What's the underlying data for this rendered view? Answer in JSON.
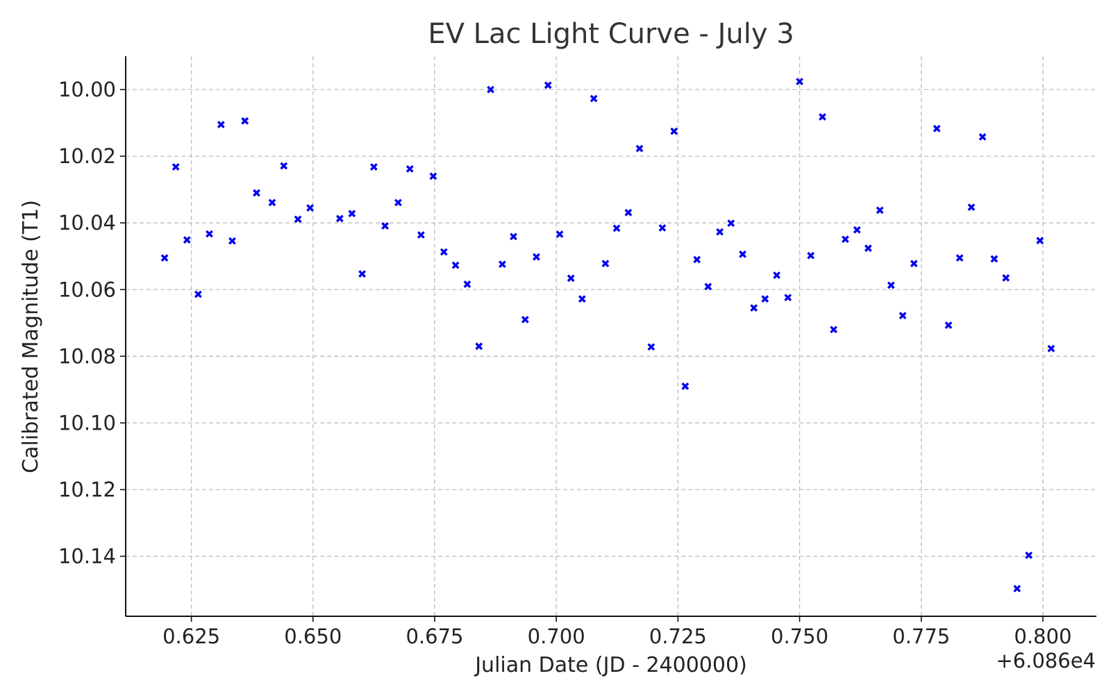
{
  "chart_data": {
    "type": "scatter",
    "title": "EV Lac Light Curve - July 3",
    "xlabel": "Julian Date (JD - 2400000)",
    "ylabel": "Calibrated Magnitude (T1)",
    "x_offset_label": "+6.086e4",
    "x_ticks": [
      "0.625",
      "0.650",
      "0.675",
      "0.700",
      "0.725",
      "0.750",
      "0.775",
      "0.800"
    ],
    "y_ticks": [
      "10.00",
      "10.02",
      "10.04",
      "10.06",
      "10.08",
      "10.10",
      "10.12",
      "10.14"
    ],
    "xlim": [
      60860.6115,
      60860.811
    ],
    "ylim": [
      10.158,
      9.99
    ],
    "y_inverted": true,
    "grid": true,
    "marker": "x",
    "marker_color": "#0000ee",
    "series": [
      {
        "x": [
          60860.6195,
          60860.6218,
          60860.6241,
          60860.6264,
          60860.6287,
          60860.6311,
          60860.6334,
          60860.636,
          60860.6384,
          60860.6416,
          60860.644,
          60860.6469,
          60860.6494,
          60860.6555,
          60860.658,
          60860.6601,
          60860.6625,
          60860.6648,
          60860.6675,
          60860.6699,
          60860.6722,
          60860.6747,
          60860.6769,
          60860.6793,
          60860.6817,
          60860.6841,
          60860.6865,
          60860.6889,
          60860.6912,
          60860.6936,
          60860.6959,
          60860.6983,
          60860.7007,
          60860.703,
          60860.7053,
          60860.7077,
          60860.7101,
          60860.7124,
          60860.7148,
          60860.7171,
          60860.7195,
          60860.7218,
          60860.7242,
          60860.7265,
          60860.7289,
          60860.7312,
          60860.7336,
          60860.7359,
          60860.7383,
          60860.7406,
          60860.7429,
          60860.7453,
          60860.7476,
          60860.75,
          60860.7523,
          60860.7547,
          60860.757,
          60860.7594,
          60860.7618,
          60860.7641,
          60860.7665,
          60860.7688,
          60860.7712,
          60860.7735,
          60860.7782,
          60860.7806,
          60860.7829,
          60860.7853,
          60860.7876,
          60860.79,
          60860.7924,
          60860.7947,
          60860.7971,
          60860.7994,
          60860.8017
        ],
        "y": [
          10.0505,
          10.0232,
          10.0451,
          10.0614,
          10.0433,
          10.0105,
          10.0454,
          10.0094,
          10.031,
          10.0339,
          10.0229,
          10.0389,
          10.0355,
          10.0387,
          10.0372,
          10.0553,
          10.0232,
          10.0409,
          10.0339,
          10.0238,
          10.0436,
          10.026,
          10.0487,
          10.0527,
          10.0584,
          10.077,
          10.0,
          10.0524,
          10.0441,
          10.069,
          10.0502,
          9.9987,
          10.0434,
          10.0566,
          10.0628,
          10.0027,
          10.0522,
          10.0416,
          10.0369,
          10.0177,
          10.0772,
          10.0415,
          10.0125,
          10.089,
          10.051,
          10.0591,
          10.0427,
          10.0401,
          10.0494,
          10.0655,
          10.0628,
          10.0557,
          10.0624,
          9.9976,
          10.0498,
          10.0082,
          10.072,
          10.0449,
          10.0421,
          10.0476,
          10.0362,
          10.0587,
          10.0678,
          10.0522,
          10.0117,
          10.0707,
          10.0505,
          10.0353,
          10.0142,
          10.0508,
          10.0565,
          10.1497,
          10.1397,
          10.0453,
          10.0777
        ]
      }
    ]
  }
}
